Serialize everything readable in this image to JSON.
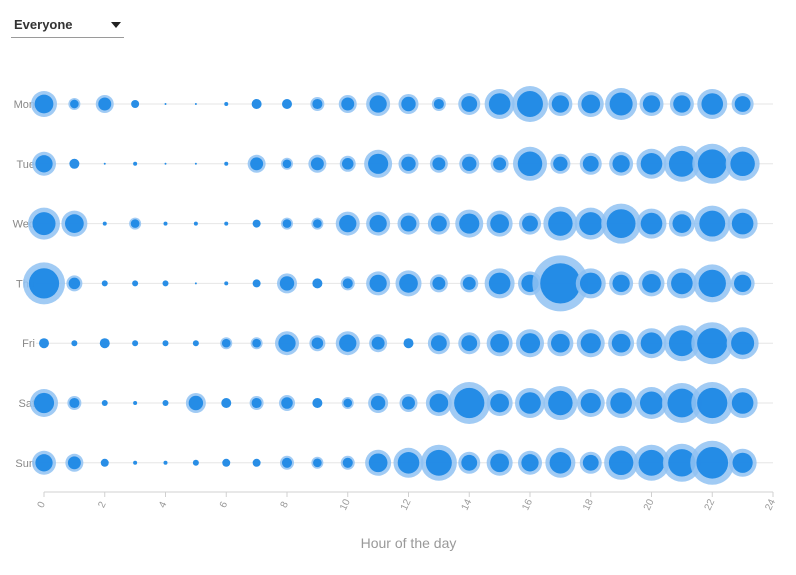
{
  "filter": {
    "selected": "Everyone",
    "caret_icon": "caret-down-icon"
  },
  "chart_data": {
    "type": "bubble",
    "title": "",
    "xlabel": "Hour of the day",
    "ylabel": "",
    "xlim": [
      0,
      24
    ],
    "x_ticks": [
      "0",
      "2",
      "4",
      "6",
      "8",
      "10",
      "12",
      "14",
      "16",
      "18",
      "20",
      "22",
      "24"
    ],
    "days": [
      "Mon",
      "Tue",
      "Wed",
      "Thu",
      "Fri",
      "Sat",
      "Sun"
    ],
    "hours": [
      0,
      1,
      2,
      3,
      4,
      5,
      6,
      7,
      8,
      9,
      10,
      11,
      12,
      13,
      14,
      15,
      16,
      17,
      18,
      19,
      20,
      21,
      22,
      23
    ],
    "series": [
      {
        "day": "Mon",
        "values": [
          13,
          6,
          9,
          4,
          1,
          1,
          2,
          5,
          5,
          7,
          9,
          12,
          10,
          7,
          11,
          15,
          18,
          12,
          13,
          16,
          12,
          12,
          15,
          11
        ]
      },
      {
        "day": "Tue",
        "values": [
          12,
          5,
          1,
          2,
          1,
          1,
          2,
          9,
          6,
          9,
          8,
          14,
          10,
          9,
          10,
          9,
          17,
          10,
          11,
          12,
          15,
          18,
          20,
          17
        ]
      },
      {
        "day": "Wed",
        "values": [
          16,
          13,
          2,
          6,
          2,
          2,
          2,
          4,
          6,
          6,
          12,
          12,
          11,
          11,
          14,
          13,
          11,
          17,
          16,
          20,
          15,
          13,
          18,
          15
        ]
      },
      {
        "day": "Thu",
        "values": [
          21,
          8,
          3,
          3,
          3,
          1,
          2,
          4,
          10,
          5,
          7,
          12,
          13,
          9,
          9,
          15,
          12,
          28,
          15,
          12,
          13,
          15,
          19,
          12
        ]
      },
      {
        "day": "Fri",
        "values": [
          5,
          3,
          5,
          3,
          3,
          3,
          6,
          6,
          12,
          8,
          12,
          9,
          5,
          11,
          11,
          13,
          14,
          13,
          14,
          13,
          15,
          18,
          21,
          16
        ]
      },
      {
        "day": "Sat",
        "values": [
          14,
          7,
          3,
          2,
          3,
          10,
          5,
          7,
          8,
          5,
          6,
          10,
          9,
          13,
          21,
          13,
          15,
          17,
          14,
          15,
          16,
          20,
          21,
          15
        ]
      },
      {
        "day": "Sun",
        "values": [
          12,
          9,
          4,
          2,
          2,
          3,
          4,
          4,
          7,
          6,
          7,
          13,
          15,
          18,
          11,
          13,
          12,
          15,
          11,
          17,
          18,
          19,
          22,
          14
        ]
      }
    ],
    "color": "#1e88e5",
    "halo_color": "#90c2f2",
    "grid": "horizontal"
  }
}
